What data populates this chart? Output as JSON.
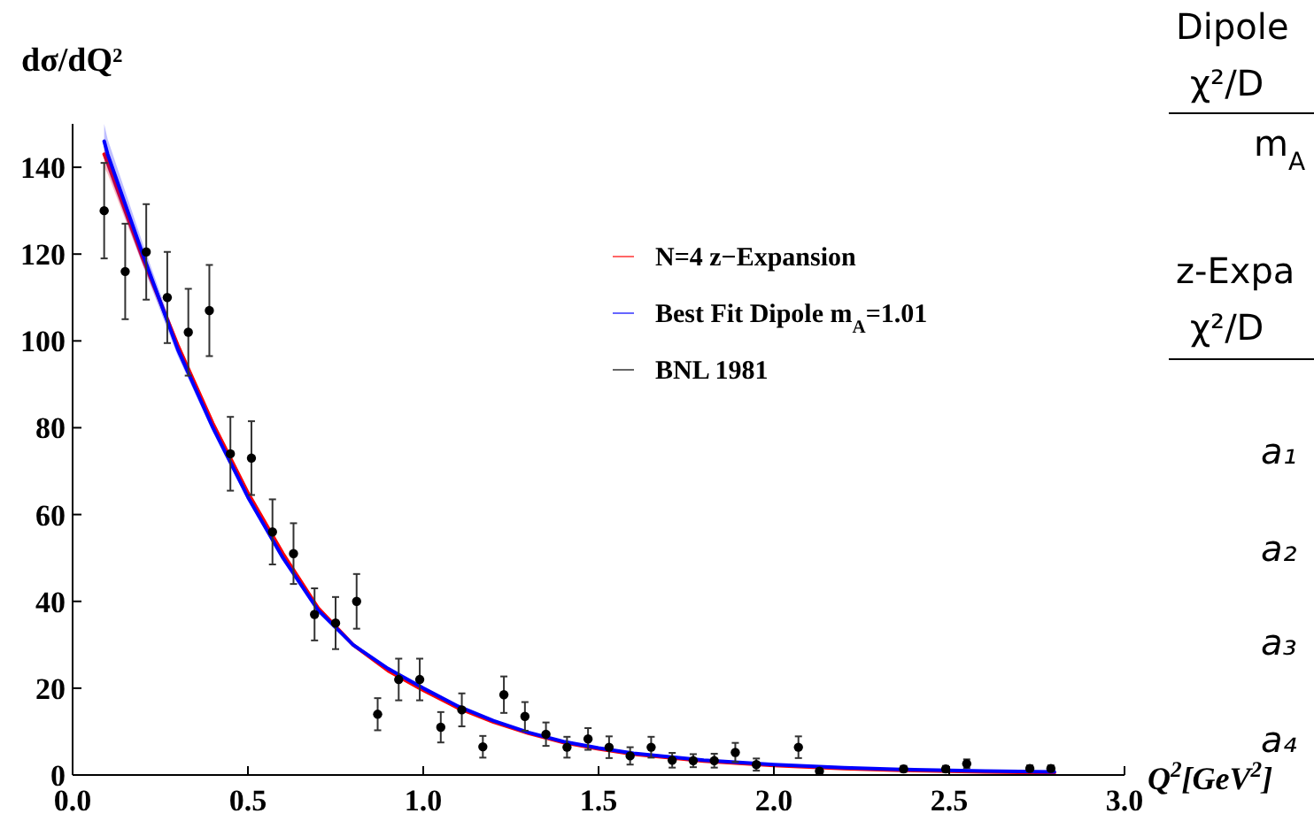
{
  "chart_data": {
    "type": "scatter",
    "ylabel": "dσ/dQ²",
    "xlabel": "Q$^{2}$[GeV$^{2}$]",
    "xlim": [
      0,
      3
    ],
    "ylim": [
      0,
      150
    ],
    "xticks": [
      {
        "value": 0,
        "label": "0.0"
      },
      {
        "value": 0.5,
        "label": "0.5"
      },
      {
        "value": 1,
        "label": "1.0"
      },
      {
        "value": 1.5,
        "label": "1.5"
      },
      {
        "value": 2,
        "label": "2.0"
      },
      {
        "value": 2.5,
        "label": "2.5"
      },
      {
        "value": 3,
        "label": "3.0"
      }
    ],
    "yticks": [
      0,
      20,
      40,
      60,
      80,
      100,
      120,
      140
    ],
    "grid": false,
    "legend": "top right",
    "series": [
      {
        "name": "N=4 z−Expansion",
        "type": "line",
        "color": "#ff0000",
        "x": [
          0.09,
          0.1,
          0.2,
          0.3,
          0.4,
          0.5,
          0.6,
          0.7,
          0.8,
          0.9,
          1.0,
          1.1,
          1.2,
          1.3,
          1.4,
          1.5,
          1.6,
          1.8,
          2.0,
          2.2,
          2.4,
          2.6,
          2.8
        ],
        "values": [
          143,
          141,
          119,
          99,
          81,
          65,
          51,
          38.5,
          30,
          24,
          19.5,
          15.4,
          12.2,
          9.6,
          7.5,
          6.0,
          4.8,
          3.2,
          2.2,
          1.5,
          1.0,
          0.7,
          0.5
        ],
        "lower": [
          140,
          138.5,
          117.5,
          98,
          80.2,
          64.4,
          50.5,
          38,
          29.6,
          23.7,
          19.2,
          15.2,
          12,
          9.4,
          7.3,
          5.8,
          4.6,
          3,
          2,
          1.3,
          0.8,
          0.5,
          0.3
        ],
        "upper": [
          146,
          143.5,
          120.5,
          100,
          81.8,
          65.6,
          51.5,
          39,
          30.4,
          24.3,
          19.8,
          15.6,
          12.4,
          9.8,
          7.7,
          6.2,
          5,
          3.4,
          2.4,
          1.7,
          1.2,
          0.9,
          0.7
        ]
      },
      {
        "name": "Best Fit Dipole m$_{A}$=1.01",
        "type": "line",
        "color": "#0000ff",
        "x": [
          0.09,
          0.1,
          0.2,
          0.3,
          0.4,
          0.5,
          0.6,
          0.7,
          0.8,
          0.9,
          1.0,
          1.1,
          1.2,
          1.3,
          1.4,
          1.5,
          1.6,
          1.8,
          2.0,
          2.2,
          2.4,
          2.6,
          2.8
        ],
        "values": [
          146,
          143,
          120,
          98,
          80,
          64,
          50,
          38,
          30,
          24.5,
          20,
          15.8,
          12.5,
          9.8,
          7.7,
          6.2,
          5.0,
          3.4,
          2.4,
          1.7,
          1.2,
          0.9,
          0.7
        ],
        "lower": [
          142,
          139.5,
          117.5,
          96.5,
          79,
          63.2,
          49.4,
          37.5,
          29.6,
          24.2,
          19.7,
          15.6,
          12.3,
          9.6,
          7.5,
          6,
          4.8,
          3.2,
          2.2,
          1.5,
          1,
          0.7,
          0.5
        ],
        "upper": [
          150,
          146.5,
          122.5,
          99.5,
          81,
          64.8,
          50.6,
          38.5,
          30.4,
          24.8,
          20.3,
          16,
          12.7,
          10,
          7.9,
          6.4,
          5.2,
          3.6,
          2.6,
          1.9,
          1.4,
          1.1,
          0.9
        ]
      },
      {
        "name": "BNL 1981",
        "marker": "circle",
        "color": "#000000",
        "x": [
          0.09,
          0.15,
          0.21,
          0.27,
          0.33,
          0.39,
          0.45,
          0.51,
          0.57,
          0.63,
          0.69,
          0.75,
          0.81,
          0.87,
          0.93,
          0.99,
          1.05,
          1.11,
          1.17,
          1.23,
          1.29,
          1.35,
          1.41,
          1.47,
          1.53,
          1.59,
          1.65,
          1.71,
          1.77,
          1.83,
          1.89,
          1.95,
          2.07,
          2.13,
          2.37,
          2.49,
          2.55,
          2.73,
          2.79
        ],
        "values": [
          130,
          116,
          120.5,
          110,
          102,
          107,
          74,
          73,
          56,
          51,
          37,
          35,
          40,
          14,
          22,
          22,
          11,
          15,
          6.5,
          18.5,
          13.5,
          9.4,
          6.4,
          8.3,
          6.4,
          4.4,
          6.4,
          3.4,
          3.3,
          3.3,
          5.2,
          2.4,
          6.4,
          0.9,
          1.4,
          1.4,
          2.6,
          1.5,
          1.5
        ],
        "errors": [
          11,
          11,
          11,
          10.5,
          10,
          10.5,
          8.5,
          8.5,
          7.5,
          7,
          6,
          6,
          6.3,
          3.7,
          4.8,
          4.8,
          3.5,
          3.8,
          2.5,
          4.2,
          3.3,
          2.7,
          2.4,
          2.5,
          2.5,
          2,
          2.4,
          1.7,
          1.5,
          1.6,
          2.2,
          1.4,
          2.5,
          0.6,
          0.7,
          0.7,
          1,
          0.7,
          0.7
        ]
      }
    ],
    "annotations": [
      "Dipole",
      "χ²/D",
      "m$_{A}$",
      "z-Expa",
      "χ²/D",
      "a₁",
      "a₂",
      "a₃",
      "a₄"
    ]
  }
}
